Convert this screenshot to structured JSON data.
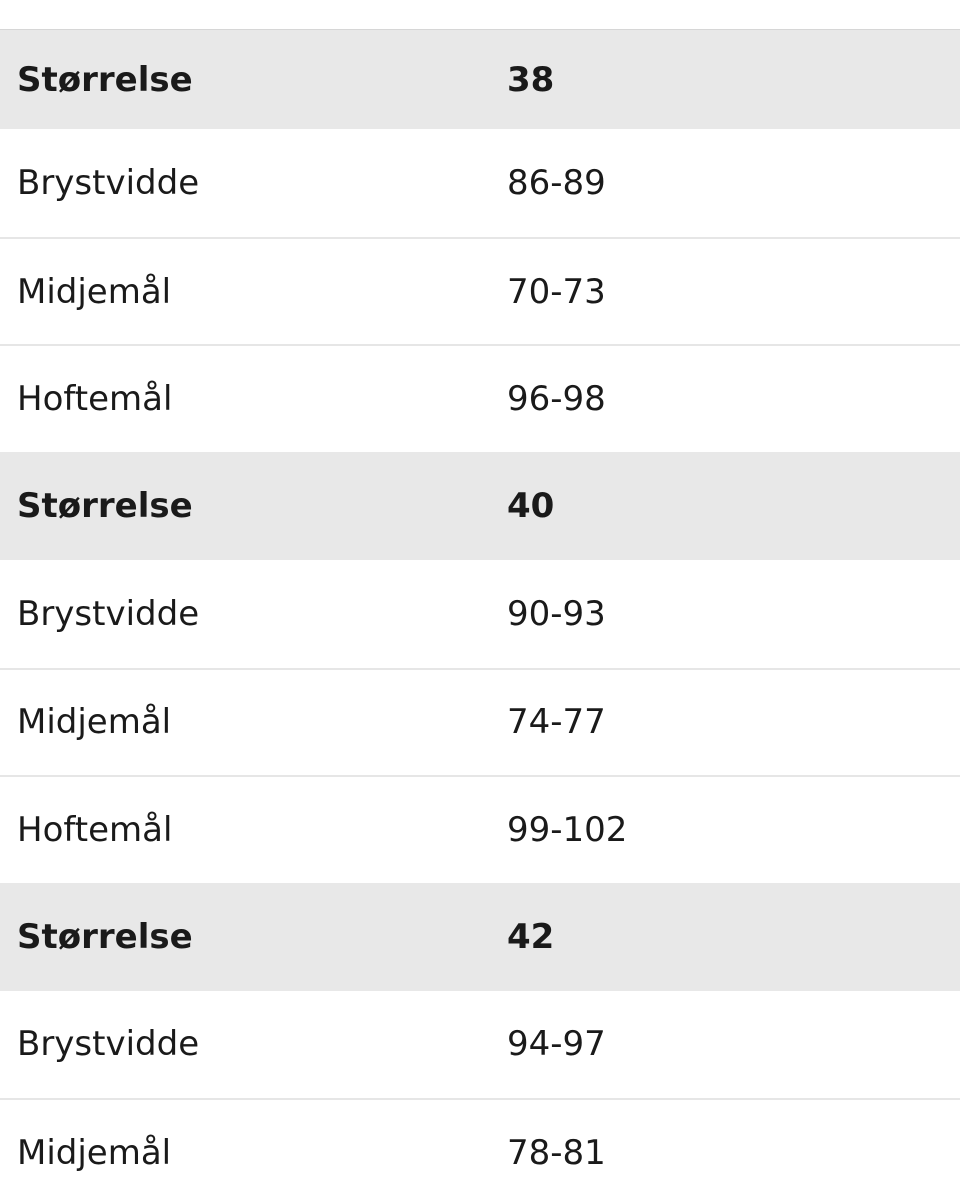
{
  "table": {
    "groups": [
      {
        "header": [
          "Størrelse",
          "38"
        ],
        "rows": [
          [
            "Brystvidde",
            "86-89"
          ],
          [
            "Midjemål",
            "70-73"
          ],
          [
            "Hoftemål",
            "96-98"
          ]
        ]
      },
      {
        "header": [
          "Størrelse",
          "40"
        ],
        "rows": [
          [
            "Brystvidde",
            "90-93"
          ],
          [
            "Midjemål",
            "74-77"
          ],
          [
            "Hoftemål",
            "99-102"
          ]
        ]
      },
      {
        "header": [
          "Størrelse",
          "42"
        ],
        "rows": [
          [
            "Brystvidde",
            "94-97"
          ],
          [
            "Midjemål",
            "78-81"
          ]
        ]
      }
    ]
  }
}
